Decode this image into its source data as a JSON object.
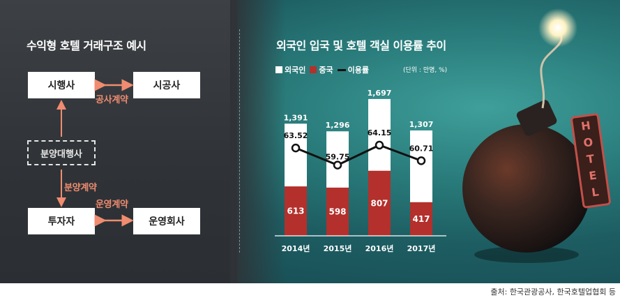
{
  "left": {
    "title": "수익형 호텔 거래구조 예시",
    "boxes": {
      "developer": "시행사",
      "constructor": "시공사",
      "sales_agent": "분양대행사",
      "investor": "투자자",
      "operator": "운영회사"
    },
    "relations": {
      "construction_contract": "공사계약",
      "sales_contract": "분양계약",
      "operation_contract": "운영계약"
    }
  },
  "right": {
    "title": "외국인 입국 및 호텔 객실 이용률 추이",
    "unit": "(단위 : 만명, %)",
    "legend": {
      "foreigners": "외국인",
      "china": "중국",
      "occupancy": "이용률"
    }
  },
  "colors": {
    "foreigners_bar": "#ffffff",
    "china_bar": "#b3302c",
    "occupancy_line": "#111111",
    "arrow": "#f08c70"
  },
  "chart_data": {
    "type": "bar",
    "categories": [
      "2014년",
      "2015년",
      "2016년",
      "2017년"
    ],
    "series": [
      {
        "name": "외국인",
        "values": [
          1391,
          1296,
          1697,
          1307
        ],
        "labels": [
          "1,391",
          "1,296",
          "1,697",
          "1,307"
        ]
      },
      {
        "name": "중국",
        "values": [
          613,
          598,
          807,
          417
        ],
        "labels": [
          "613",
          "598",
          "807",
          "417"
        ]
      },
      {
        "name": "이용률",
        "type": "line",
        "values": [
          63.52,
          59.75,
          64.15,
          60.71
        ],
        "labels": [
          "63.52",
          "59.75",
          "64.15",
          "60.71"
        ]
      }
    ],
    "title": "외국인 입국 및 호텔 객실 이용률 추이",
    "ylim": [
      0,
      1800
    ],
    "grid": false,
    "legend_position": "top-left"
  },
  "illustration": {
    "sign_text": "HOTEL"
  },
  "source": "출처: 한국관광공사, 한국호텔업협회 등"
}
